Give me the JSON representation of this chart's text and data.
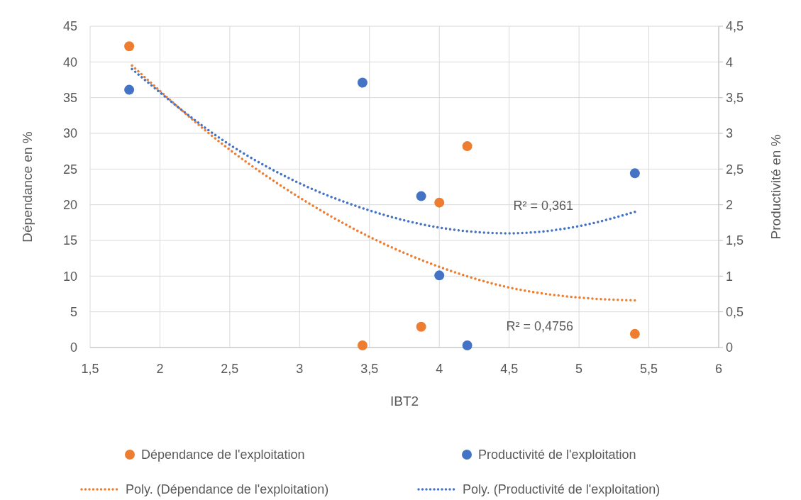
{
  "chart_data": {
    "type": "scatter",
    "xlabel": "IBT2",
    "ylabel": "Dépendance en %",
    "y2label": "Productivité en %",
    "xlim": [
      1.5,
      6
    ],
    "xticks": [
      {
        "value": 1.5,
        "label": "1,5"
      },
      2,
      {
        "value": 2.5,
        "label": "2,5"
      },
      3,
      {
        "value": 3.5,
        "label": "3,5"
      },
      4,
      {
        "value": 4.5,
        "label": "4,5"
      },
      5,
      {
        "value": 5.5,
        "label": "5,5"
      },
      6
    ],
    "ylim": [
      0,
      45
    ],
    "yticks": [
      0,
      5,
      10,
      15,
      20,
      25,
      30,
      35,
      40,
      45
    ],
    "y2lim": [
      0,
      4.5
    ],
    "y2ticks": [
      0,
      {
        "value": 0.5,
        "label": "0,5"
      },
      1,
      {
        "value": 1.5,
        "label": "1,5"
      },
      2,
      {
        "value": 2.5,
        "label": "2,5"
      },
      3,
      {
        "value": 3.5,
        "label": "3,5"
      },
      4,
      {
        "value": 4.5,
        "label": "4,5"
      }
    ],
    "grid": true,
    "legend": "bottom",
    "series": [
      {
        "name": "Dépendance de l'exploitation",
        "marker": "circle",
        "color": "#ed7d31",
        "x": [
          1.78,
          3.45,
          3.87,
          4.0,
          4.2,
          5.4
        ],
        "values": [
          42.2,
          0.3,
          2.9,
          20.3,
          28.2,
          1.9
        ]
      },
      {
        "name": "Productivité de l'exploitation",
        "marker": "circle",
        "axis": "y2",
        "color": "#4472c4",
        "x": [
          1.78,
          3.45,
          3.87,
          4.0,
          4.2,
          5.4
        ],
        "values": [
          3.61,
          3.71,
          2.12,
          1.01,
          0.03,
          2.44
        ]
      },
      {
        "name": "Poly. (Dépendance de l'exploitation)",
        "type": "line",
        "line_style": "dotted",
        "color": "#ed7d31",
        "x": [
          1.8,
          2.5,
          3,
          3.5,
          4,
          4.5,
          5,
          5.4
        ],
        "values": [
          39.5,
          27.7,
          21,
          15.5,
          11.3,
          8.4,
          7,
          6.6
        ]
      },
      {
        "name": "Poly. (Productivité de l'exploitation)",
        "type": "line",
        "line_style": "dotted",
        "axis": "y2",
        "color": "#4472c4",
        "x": [
          1.8,
          2.5,
          3,
          3.5,
          4,
          4.5,
          5,
          5.4
        ],
        "values": [
          3.9,
          2.84,
          2.3,
          1.92,
          1.68,
          1.6,
          1.7,
          1.9
        ]
      }
    ],
    "annotations": [
      "R² = 0,361",
      "R² = 0,4756"
    ]
  }
}
